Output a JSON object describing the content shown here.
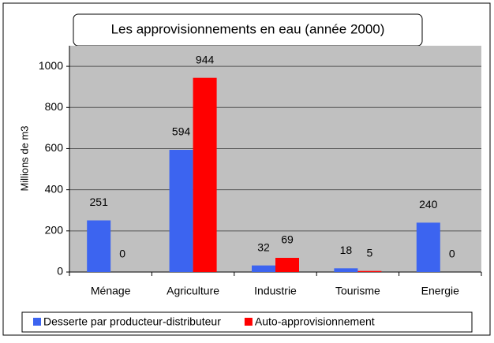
{
  "chart_data": {
    "type": "bar",
    "title": "Les approvisionnements en eau (année 2000)",
    "y_label": "Millions de m3",
    "categories": [
      "Ménage",
      "Agriculture",
      "Industrie",
      "Tourisme",
      "Energie"
    ],
    "series": [
      {
        "name": "Desserte par producteur-distributeur",
        "color": "#3c64f0",
        "values": [
          251,
          594,
          32,
          18,
          240
        ]
      },
      {
        "name": "Auto-approvisionnement",
        "color": "#ff0000",
        "values": [
          0,
          944,
          69,
          5,
          0
        ]
      }
    ],
    "ylim": [
      0,
      1100
    ],
    "yticks": [
      0,
      200,
      400,
      600,
      800,
      1000
    ],
    "grid": true,
    "legend": "bottom"
  }
}
